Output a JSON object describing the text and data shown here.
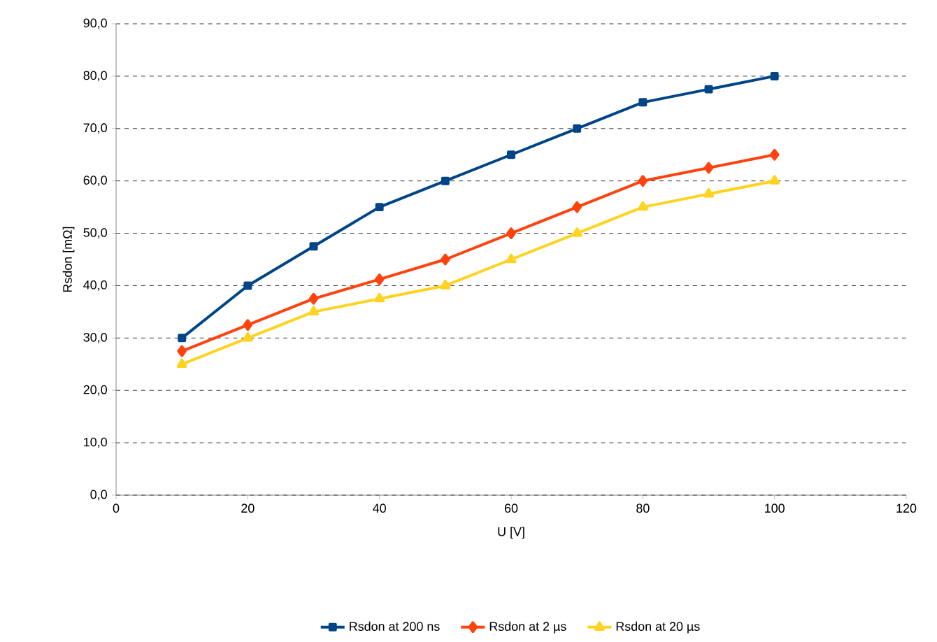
{
  "chart_data": {
    "type": "line",
    "xlabel": "U [V]",
    "ylabel": "Rsdon [mΩ]",
    "xlim": [
      0,
      120
    ],
    "xticks": [
      0,
      20,
      40,
      60,
      80,
      100,
      120
    ],
    "ylim": [
      0,
      90
    ],
    "yticks": [
      {
        "value": 0,
        "label": "0,0"
      },
      {
        "value": 10,
        "label": "10,0"
      },
      {
        "value": 20,
        "label": "20,0"
      },
      {
        "value": 30,
        "label": "30,0"
      },
      {
        "value": 40,
        "label": "40,0"
      },
      {
        "value": 50,
        "label": "50,0"
      },
      {
        "value": 60,
        "label": "60,0"
      },
      {
        "value": 70,
        "label": "70,0"
      },
      {
        "value": 80,
        "label": "80,0"
      },
      {
        "value": 90,
        "label": "90,0"
      }
    ],
    "x": [
      10,
      20,
      30,
      40,
      50,
      60,
      70,
      80,
      90,
      100
    ],
    "grid": "y",
    "legend": "bottom",
    "line_style": "solid",
    "series": [
      {
        "name": "Rsdon at 200 ns",
        "color": "#004586",
        "marker": "square",
        "values": [
          30,
          40,
          47.5,
          55,
          60,
          65,
          70,
          75,
          77.5,
          80
        ]
      },
      {
        "name": "Rsdon at 2 µs",
        "color": "#ff420e",
        "marker": "diamond",
        "values": [
          27.5,
          32.5,
          37.5,
          41.2,
          45,
          50,
          55,
          60,
          62.5,
          65
        ]
      },
      {
        "name": "Rsdon at 20 µs",
        "color": "#ffd320",
        "marker": "triangle",
        "values": [
          25,
          30,
          35,
          37.5,
          40,
          45,
          50,
          55,
          57.5,
          60
        ]
      }
    ]
  }
}
